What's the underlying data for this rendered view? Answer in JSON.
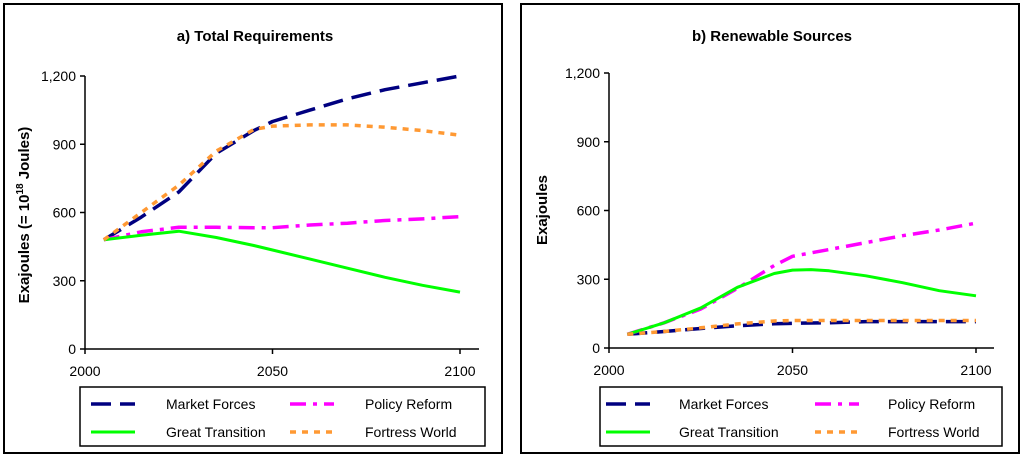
{
  "chart_data": [
    {
      "type": "line",
      "title": "a) Total Requirements",
      "xlabel": "",
      "ylabel": "Exajoules (= 10",
      "ylabel_sup": "18",
      "ylabel_suffix": " Joules)",
      "xlim": [
        2000,
        2100
      ],
      "ylim": [
        0,
        1200
      ],
      "xticks": [
        2000,
        2050,
        2100
      ],
      "yticks": [
        0,
        300,
        600,
        900,
        1200
      ],
      "xtick_labels": [
        "2000",
        "2050",
        "2100"
      ],
      "ytick_labels": [
        "0",
        "300",
        "600",
        "900",
        "1,200"
      ],
      "grid": false,
      "legend_position": "bottom",
      "series": [
        {
          "name": "Market Forces",
          "color": "#000080",
          "dash": "long-dash",
          "x": [
            2005,
            2015,
            2025,
            2035,
            2045,
            2050,
            2060,
            2070,
            2080,
            2090,
            2100
          ],
          "y": [
            480,
            580,
            690,
            860,
            960,
            1000,
            1050,
            1100,
            1140,
            1170,
            1200
          ]
        },
        {
          "name": "Policy Reform",
          "color": "#ff00ff",
          "dash": "dash-dot",
          "x": [
            2005,
            2015,
            2025,
            2035,
            2045,
            2050,
            2060,
            2070,
            2080,
            2090,
            2100
          ],
          "y": [
            480,
            515,
            535,
            535,
            533,
            533,
            545,
            553,
            565,
            572,
            582
          ]
        },
        {
          "name": "Great Transition",
          "color": "#00ff00",
          "dash": "solid",
          "x": [
            2005,
            2015,
            2025,
            2035,
            2045,
            2050,
            2060,
            2070,
            2080,
            2090,
            2100
          ],
          "y": [
            480,
            500,
            518,
            490,
            455,
            435,
            395,
            355,
            315,
            280,
            250
          ]
        },
        {
          "name": "Fortress World",
          "color": "#ff9933",
          "dash": "short-dash",
          "x": [
            2005,
            2015,
            2025,
            2035,
            2045,
            2050,
            2060,
            2070,
            2080,
            2090,
            2100
          ],
          "y": [
            480,
            600,
            720,
            870,
            965,
            980,
            985,
            985,
            975,
            960,
            940
          ]
        }
      ]
    },
    {
      "type": "line",
      "title": "b) Renewable Sources",
      "xlabel": "",
      "ylabel": "Exajoules",
      "xlim": [
        2000,
        2100
      ],
      "ylim": [
        0,
        1200
      ],
      "xticks": [
        2000,
        2050,
        2100
      ],
      "yticks": [
        0,
        300,
        600,
        900,
        1200
      ],
      "xtick_labels": [
        "2000",
        "2050",
        "2100"
      ],
      "ytick_labels": [
        "0",
        "300",
        "600",
        "900",
        "1,200"
      ],
      "grid": false,
      "legend_position": "bottom",
      "series": [
        {
          "name": "Market Forces",
          "color": "#000080",
          "dash": "long-dash",
          "x": [
            2005,
            2015,
            2025,
            2035,
            2045,
            2050,
            2060,
            2070,
            2080,
            2090,
            2100
          ],
          "y": [
            60,
            72,
            85,
            97,
            106,
            108,
            110,
            115,
            115,
            115,
            115
          ]
        },
        {
          "name": "Policy Reform",
          "color": "#ff00ff",
          "dash": "dash-dot",
          "x": [
            2005,
            2015,
            2025,
            2035,
            2045,
            2050,
            2060,
            2070,
            2080,
            2090,
            2100
          ],
          "y": [
            60,
            110,
            170,
            260,
            360,
            400,
            430,
            460,
            490,
            515,
            545
          ]
        },
        {
          "name": "Great Transition",
          "color": "#00ff00",
          "dash": "solid",
          "x": [
            2005,
            2015,
            2025,
            2035,
            2045,
            2050,
            2055,
            2060,
            2070,
            2080,
            2090,
            2100
          ],
          "y": [
            60,
            110,
            175,
            265,
            325,
            340,
            342,
            337,
            315,
            285,
            250,
            228
          ]
        },
        {
          "name": "Fortress World",
          "color": "#ff9933",
          "dash": "short-dash",
          "x": [
            2005,
            2015,
            2025,
            2035,
            2045,
            2050,
            2060,
            2070,
            2080,
            2090,
            2100
          ],
          "y": [
            60,
            72,
            88,
            105,
            118,
            120,
            120,
            120,
            120,
            120,
            120
          ]
        }
      ]
    }
  ]
}
